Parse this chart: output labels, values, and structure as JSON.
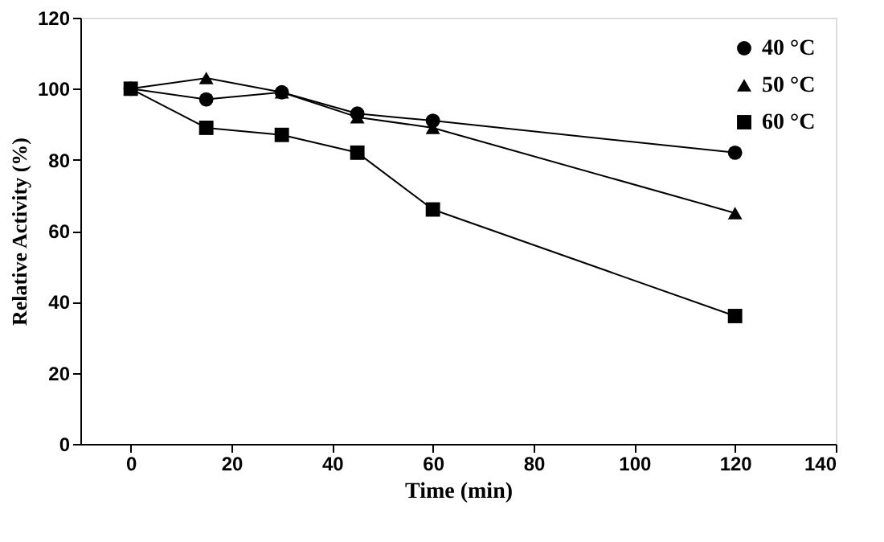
{
  "chart_data": {
    "type": "line",
    "xlabel": "Time (min)",
    "ylabel": "Relative Activity (%)",
    "x": [
      0,
      15,
      30,
      45,
      60,
      120
    ],
    "series": [
      {
        "name": "40 °C",
        "color": "#000000",
        "marker": "circle",
        "values": [
          100,
          97,
          99,
          93,
          91,
          82
        ]
      },
      {
        "name": "50 °C",
        "color": "#000000",
        "marker": "triangle",
        "values": [
          100,
          103,
          99,
          92,
          89,
          65
        ]
      },
      {
        "name": "60 °C",
        "color": "#000000",
        "marker": "square",
        "values": [
          100,
          89,
          87,
          82,
          66,
          36
        ]
      }
    ],
    "xlim": [
      -10,
      140
    ],
    "xticks": [
      0,
      20,
      40,
      60,
      80,
      100,
      120,
      140
    ],
    "ylim": [
      0,
      120
    ],
    "yticks": [
      0,
      20,
      40,
      60,
      80,
      100,
      120
    ],
    "grid": false,
    "legend": "top right",
    "line_style": "solid"
  }
}
